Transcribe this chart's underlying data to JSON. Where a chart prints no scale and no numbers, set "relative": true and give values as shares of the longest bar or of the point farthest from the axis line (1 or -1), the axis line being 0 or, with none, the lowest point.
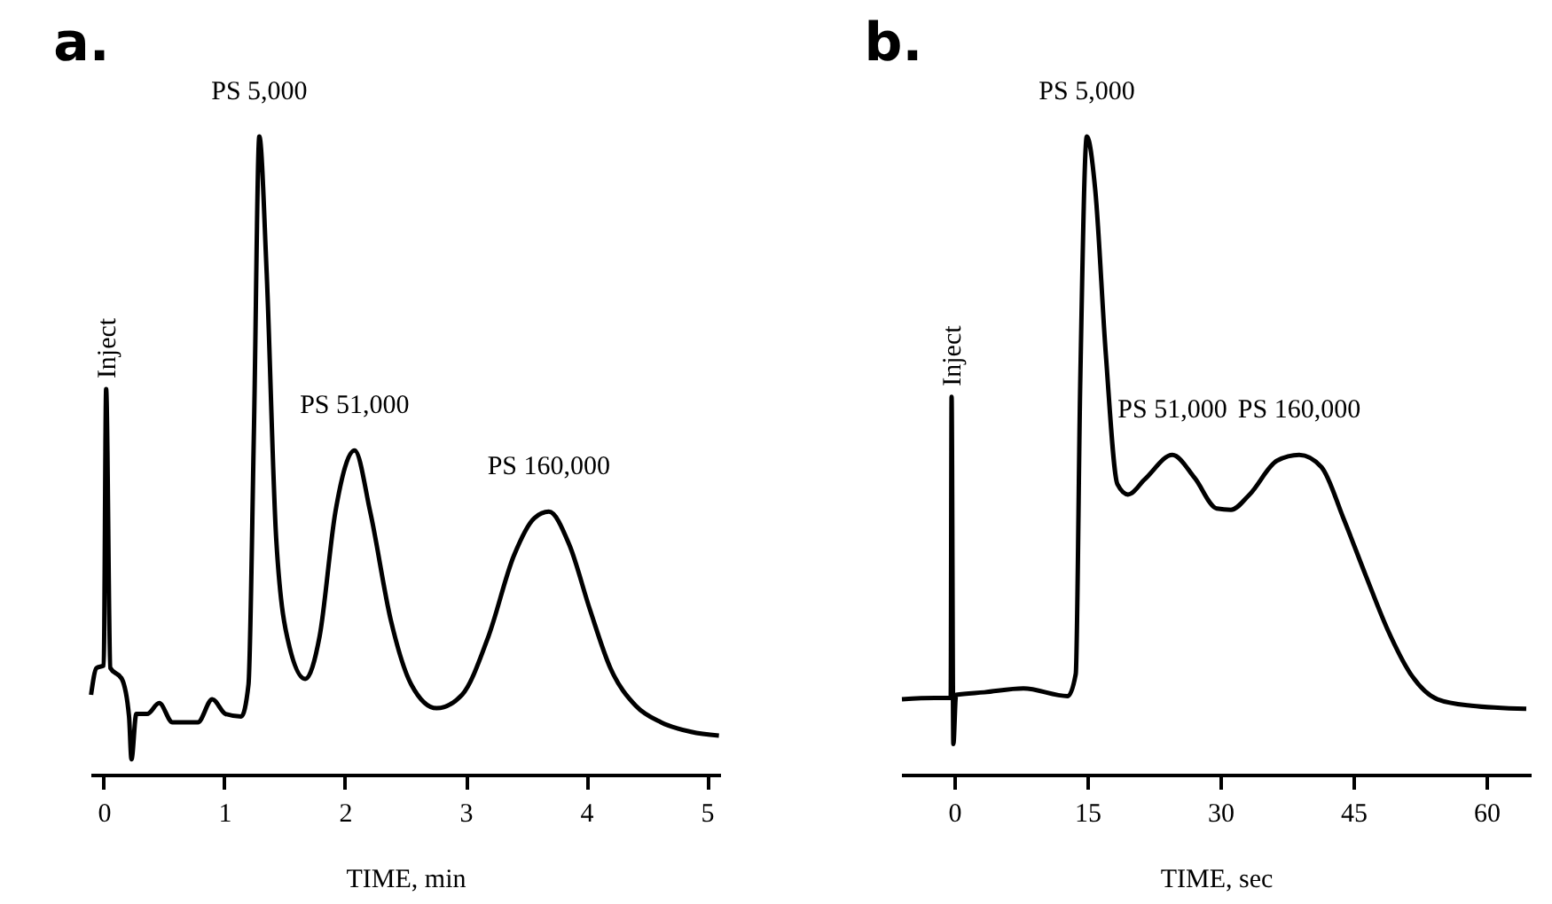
{
  "chart_data": [
    {
      "type": "line",
      "title": "a.",
      "xlabel": "TIME,  min",
      "relative": true,
      "xlim": [
        -0.11,
        5.11
      ],
      "xticks": [
        0,
        1,
        2,
        3,
        4,
        5
      ],
      "grid": false,
      "series": [
        {
          "color": "#000000",
          "x": [
            -0.105,
            -0.06,
            0,
            0.02,
            0.055,
            0.15,
            0.21,
            0.23,
            0.27,
            0.36,
            0.46,
            0.57,
            0.78,
            0.9,
            1.01,
            1.14,
            1.2,
            1.245,
            1.29,
            1.35,
            1.43,
            1.54,
            1.67,
            1.79,
            1.92,
            2.08,
            2.21,
            2.38,
            2.55,
            2.76,
            2.97,
            3.19,
            3.4,
            3.57,
            3.69,
            3.86,
            4.03,
            4.2,
            4.41,
            4.62,
            4.87,
            5.1
          ],
          "values": [
            0.125,
            0.167,
            0.171,
            0.604,
            0.167,
            0.15,
            0.091,
            0.024,
            0.095,
            0.095,
            0.112,
            0.082,
            0.082,
            0.118,
            0.095,
            0.091,
            0.141,
            0.537,
            1.0,
            0.79,
            0.369,
            0.2,
            0.15,
            0.217,
            0.411,
            0.508,
            0.411,
            0.242,
            0.141,
            0.104,
            0.125,
            0.217,
            0.343,
            0.402,
            0.412,
            0.36,
            0.259,
            0.167,
            0.108,
            0.082,
            0.067,
            0.061
          ]
        }
      ],
      "annotations": [
        {
          "text": "Inject",
          "x": 0.02,
          "y": 0.604
        },
        {
          "text": "PS 5,000",
          "x": 1.29,
          "y": 1.0
        },
        {
          "text": "PS 51,000",
          "x": 2.08,
          "y": 0.508
        },
        {
          "text": "PS 160,000",
          "x": 3.69,
          "y": 0.412
        }
      ]
    },
    {
      "type": "line",
      "title": "b.",
      "xlabel": "TIME,  sec",
      "relative": true,
      "xlim": [
        -6,
        65
      ],
      "xticks": [
        0,
        15,
        30,
        45,
        60
      ],
      "grid": false,
      "series": [
        {
          "color": "#000000",
          "x": [
            -5.9,
            -2.2,
            -0.4,
            -0.3,
            -0.1,
            0.2,
            3.4,
            7.8,
            12.8,
            13.7,
            14.2,
            14.95,
            15.9,
            17.1,
            18.4,
            19.6,
            21.5,
            24.6,
            27.1,
            29.6,
            31.2,
            33.3,
            36.4,
            38.9,
            41.4,
            43.9,
            46.4,
            48.9,
            51.4,
            54.5,
            58.3,
            64.5
          ],
          "values": [
            0.118,
            0.12,
            0.12,
            0.592,
            0.048,
            0.125,
            0.129,
            0.135,
            0.123,
            0.158,
            0.609,
            1.0,
            0.916,
            0.657,
            0.455,
            0.439,
            0.463,
            0.501,
            0.465,
            0.417,
            0.415,
            0.439,
            0.492,
            0.501,
            0.482,
            0.401,
            0.312,
            0.226,
            0.159,
            0.118,
            0.108,
            0.103
          ]
        }
      ],
      "annotations": [
        {
          "text": "Inject",
          "x": -0.3,
          "y": 0.592
        },
        {
          "text": "PS 5,000",
          "x": 14.95,
          "y": 1.0
        },
        {
          "text": "PS 51,000",
          "x": 24.6,
          "y": 0.501
        },
        {
          "text": "PS 160,000",
          "x": 38.9,
          "y": 0.501
        }
      ]
    }
  ]
}
